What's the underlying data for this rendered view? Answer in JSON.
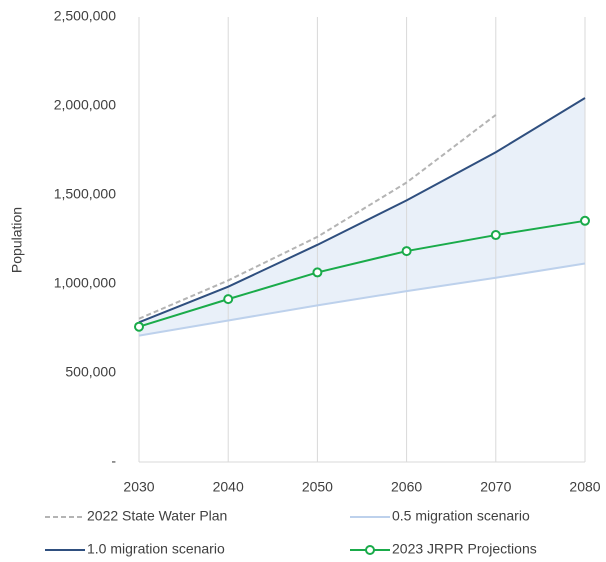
{
  "chart_data": {
    "type": "line",
    "y_label": "Population",
    "x": [
      2030,
      2040,
      2050,
      2060,
      2070,
      2080
    ],
    "xlim": [
      2030,
      2080
    ],
    "xticks": [
      2030,
      2040,
      2050,
      2060,
      2070,
      2080
    ],
    "ylim": [
      0,
      2500000
    ],
    "yticks": [
      {
        "value": 0,
        "label": "-"
      },
      {
        "value": 500000,
        "label": "500,000"
      },
      {
        "value": 1000000,
        "label": "1,000,000"
      },
      {
        "value": 1500000,
        "label": "1,500,000"
      },
      {
        "value": 2000000,
        "label": "2,000,000"
      },
      {
        "value": 2500000,
        "label": "2,500,000"
      }
    ],
    "grid": "x",
    "band": {
      "between": [
        "0.5 migration scenario",
        "1.0 migration scenario"
      ],
      "color": "#e9f0f9"
    },
    "legend": "bottom",
    "series": [
      {
        "name": "2022 State Water Plan",
        "color": "#b4b4b4",
        "dash": true,
        "values": [
          805000,
          1020000,
          1265000,
          1570000,
          1950000,
          null
        ]
      },
      {
        "name": "0.5 migration scenario",
        "color": "#bdd1ec",
        "values": [
          710000,
          795000,
          880000,
          960000,
          1035000,
          1115000
        ]
      },
      {
        "name": "1.0 migration scenario",
        "color": "#2f4f7f",
        "values": [
          785000,
          985000,
          1220000,
          1470000,
          1740000,
          2045000
        ]
      },
      {
        "name": "2023 JRPR Projections",
        "color": "#1aab4a",
        "markers": true,
        "values": [
          760000,
          915000,
          1065000,
          1185000,
          1275000,
          1355000
        ]
      }
    ]
  }
}
